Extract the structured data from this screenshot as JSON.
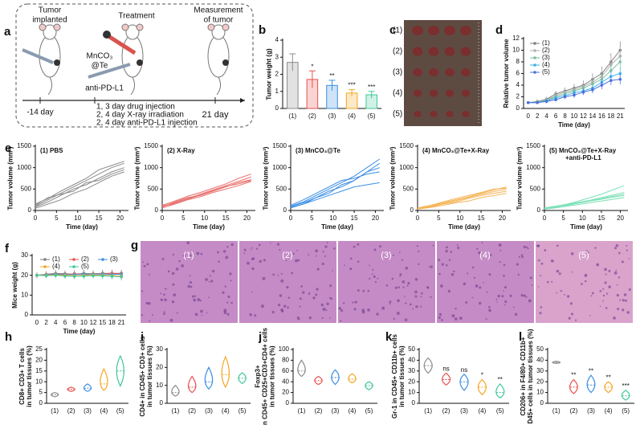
{
  "schematic": {
    "letter": "a",
    "tumor_implanted": [
      "Tumor",
      "implanted"
    ],
    "treatment": "Treatment",
    "measurement": [
      "Measurement",
      "of tumor"
    ],
    "drug": [
      "MnCO₃",
      "@Te"
    ],
    "antibody": "anti-PD-L1",
    "start_day": "-14 day",
    "schedule": [
      "1, 3 day drug injection",
      "2, 4 day X-ray irradiation",
      "2, 4 day anti-PD-L1 injection"
    ],
    "end_day": "21 day"
  },
  "photo": {
    "letter": "c",
    "labels": [
      "(1)",
      "(2)",
      "(3)",
      "(4)",
      "(5)"
    ]
  },
  "histology": {
    "letter": "g",
    "labels": [
      "(1)",
      "(2)",
      "(3)",
      "(4)",
      "(5)"
    ]
  },
  "chart_data": [
    {
      "type": "bar",
      "letter": "b",
      "ylabel": "Tumor weight (g)",
      "categories": [
        "(1)",
        "(2)",
        "(3)",
        "(4)",
        "(5)"
      ],
      "values": [
        2.7,
        1.7,
        1.35,
        0.9,
        0.8
      ],
      "errors": [
        0.5,
        0.5,
        0.3,
        0.2,
        0.2
      ],
      "colors": [
        "#8c8c8c",
        "#e8524f",
        "#3b8fe0",
        "#f5a623",
        "#3fc79a"
      ],
      "significance": [
        null,
        "*",
        "**",
        "***",
        "***"
      ],
      "ylim": [
        0,
        4
      ],
      "yticks": [
        0,
        1,
        2,
        3,
        4
      ]
    },
    {
      "type": "line",
      "letter": "d",
      "ylabel": "Relative tumor volume",
      "xlabel": "Time (day)",
      "categories": [
        0,
        2,
        4,
        6,
        8,
        10,
        12,
        14,
        16,
        18,
        21
      ],
      "ylim": [
        0,
        12
      ],
      "yticks": [
        0,
        2,
        4,
        6,
        8,
        10,
        12
      ],
      "legend": "upper left",
      "series": [
        {
          "name": "(1)",
          "color": "#7f7f7f",
          "values": [
            1,
            1.2,
            1.6,
            2.5,
            3,
            3.5,
            4,
            5,
            6,
            8,
            10
          ],
          "errors": [
            0.2,
            0.3,
            0.4,
            0.5,
            0.6,
            0.7,
            0.8,
            1,
            1.2,
            1.5,
            1.5
          ]
        },
        {
          "name": "(2)",
          "color": "#b0b0b0",
          "values": [
            1,
            1.1,
            1.5,
            2.2,
            2.8,
            3.2,
            3.8,
            4.5,
            5.5,
            7.5,
            9
          ],
          "errors": [
            0.2,
            0.3,
            0.4,
            0.5,
            0.6,
            0.7,
            0.8,
            1,
            1.2,
            1.4,
            1.5
          ]
        },
        {
          "name": "(3)",
          "color": "#7fbf9f",
          "values": [
            1,
            1.1,
            1.4,
            2,
            2.5,
            3,
            3.5,
            4.2,
            5,
            6.5,
            8
          ],
          "errors": [
            0.2,
            0.3,
            0.3,
            0.4,
            0.5,
            0.6,
            0.7,
            0.9,
            1,
            1.2,
            1.3
          ]
        },
        {
          "name": "(4)",
          "color": "#3fb2e6",
          "values": [
            1,
            1,
            1.3,
            1.8,
            2.2,
            2.7,
            3,
            3.5,
            4.5,
            5.5,
            6
          ],
          "errors": [
            0.2,
            0.2,
            0.3,
            0.4,
            0.5,
            0.5,
            0.6,
            0.7,
            0.8,
            1,
            1
          ]
        },
        {
          "name": "(5)",
          "color": "#4a6fe0",
          "values": [
            1,
            1,
            1.2,
            1.5,
            2,
            2.3,
            2.8,
            3.2,
            4,
            4.8,
            5
          ],
          "errors": [
            0.2,
            0.2,
            0.3,
            0.3,
            0.4,
            0.5,
            0.5,
            0.6,
            0.7,
            0.8,
            0.9
          ]
        }
      ]
    },
    {
      "type": "line",
      "letter": "e",
      "title": "(1) PBS",
      "ylabel": "Tumor volume (mm³)",
      "xlabel": "Time (day)",
      "x": [
        0,
        3,
        6,
        9,
        12,
        15,
        18,
        21
      ],
      "xlim": [
        0,
        22
      ],
      "xticks": [
        0,
        5,
        10,
        15,
        20
      ],
      "ylim": [
        0,
        1500
      ],
      "yticks": [
        0,
        500,
        1000,
        1500
      ],
      "color": "#8a8a8a",
      "series": [
        {
          "values": [
            100,
            250,
            400,
            550,
            700,
            850,
            1000,
            1100
          ]
        },
        {
          "values": [
            80,
            200,
            350,
            500,
            600,
            750,
            900,
            1000
          ]
        },
        {
          "values": [
            120,
            300,
            380,
            450,
            650,
            700,
            850,
            950
          ]
        },
        {
          "values": [
            50,
            150,
            250,
            400,
            500,
            650,
            800,
            900
          ]
        },
        {
          "values": [
            150,
            280,
            450,
            600,
            750,
            950,
            1050,
            1150
          ]
        }
      ]
    },
    {
      "type": "line",
      "title": "(2) X-Ray",
      "ylabel": "Tumor volume (mm³)",
      "xlabel": "Time (day)",
      "x": [
        0,
        3,
        6,
        9,
        12,
        15,
        18,
        21
      ],
      "xlim": [
        0,
        22
      ],
      "xticks": [
        0,
        5,
        10,
        15,
        20
      ],
      "ylim": [
        0,
        1500
      ],
      "yticks": [
        0,
        500,
        1000,
        1500
      ],
      "color": "#e8706e",
      "series": [
        {
          "values": [
            100,
            180,
            280,
            380,
            480,
            580,
            680,
            780
          ]
        },
        {
          "values": [
            80,
            200,
            300,
            350,
            450,
            550,
            650,
            720
          ]
        },
        {
          "values": [
            120,
            220,
            330,
            420,
            520,
            620,
            750,
            850
          ]
        },
        {
          "values": [
            60,
            150,
            250,
            320,
            420,
            500,
            580,
            680
          ]
        },
        {
          "values": [
            100,
            160,
            260,
            360,
            460,
            560,
            620,
            700
          ]
        }
      ]
    },
    {
      "type": "line",
      "title": "(3) MnCO₃@Te",
      "ylabel": "Tumor volume (mm³)",
      "xlabel": "Time (day)",
      "x": [
        0,
        3,
        6,
        9,
        12,
        15,
        18,
        21
      ],
      "xlim": [
        0,
        22
      ],
      "xticks": [
        0,
        5,
        10,
        15,
        20
      ],
      "ylim": [
        0,
        1500
      ],
      "yticks": [
        0,
        500,
        1000,
        1500
      ],
      "color": "#3a8ee6",
      "series": [
        {
          "values": [
            100,
            200,
            350,
            500,
            650,
            800,
            1000,
            1200
          ]
        },
        {
          "values": [
            80,
            150,
            300,
            450,
            550,
            700,
            900,
            1100
          ]
        },
        {
          "values": [
            120,
            250,
            400,
            550,
            700,
            750,
            850,
            900
          ]
        },
        {
          "values": [
            60,
            150,
            250,
            350,
            450,
            550,
            600,
            650
          ]
        },
        {
          "values": [
            100,
            180,
            300,
            400,
            600,
            700,
            900,
            1000
          ]
        }
      ]
    },
    {
      "type": "line",
      "title": "(4) MnCO₃@Te+X-Ray",
      "ylabel": "Tumor volume (mm³)",
      "xlabel": "Time (day)",
      "x": [
        0,
        3,
        6,
        9,
        12,
        15,
        18,
        21
      ],
      "xlim": [
        0,
        22
      ],
      "xticks": [
        0,
        5,
        10,
        15,
        20
      ],
      "ylim": [
        0,
        1500
      ],
      "yticks": [
        0,
        500,
        1000,
        1500
      ],
      "color": "#f5b55a",
      "series": [
        {
          "values": [
            50,
            100,
            180,
            250,
            320,
            400,
            480,
            550
          ]
        },
        {
          "values": [
            40,
            80,
            150,
            200,
            280,
            350,
            400,
            450
          ]
        },
        {
          "values": [
            60,
            120,
            200,
            280,
            350,
            420,
            500,
            520
          ]
        },
        {
          "values": [
            30,
            70,
            120,
            180,
            220,
            300,
            350,
            400
          ]
        },
        {
          "values": [
            50,
            90,
            160,
            230,
            300,
            380,
            440,
            500
          ]
        }
      ]
    },
    {
      "type": "line",
      "title": [
        "(5) MnCO₃@Te+X-Ray",
        "+anti-PD-L1"
      ],
      "ylabel": "Tumor volume (mm³)",
      "xlabel": "Time (day)",
      "x": [
        0,
        3,
        6,
        9,
        12,
        15,
        18,
        21
      ],
      "xlim": [
        0,
        22
      ],
      "xticks": [
        0,
        5,
        10,
        15,
        20
      ],
      "ylim": [
        0,
        1500
      ],
      "yticks": [
        0,
        500,
        1000,
        1500
      ],
      "color": "#7ee0b8",
      "series": [
        {
          "values": [
            50,
            100,
            150,
            220,
            300,
            380,
            480,
            580
          ]
        },
        {
          "values": [
            40,
            80,
            130,
            180,
            230,
            280,
            330,
            380
          ]
        },
        {
          "values": [
            60,
            100,
            140,
            190,
            240,
            300,
            360,
            420
          ]
        },
        {
          "values": [
            30,
            60,
            100,
            140,
            180,
            220,
            260,
            300
          ]
        },
        {
          "values": [
            40,
            90,
            120,
            170,
            220,
            260,
            310,
            350
          ]
        }
      ]
    },
    {
      "type": "line",
      "letter": "f",
      "ylabel": "Mice weight (g)",
      "xlabel": "Time (day)",
      "categories": [
        0,
        2,
        4,
        6,
        8,
        10,
        12,
        15,
        18,
        21
      ],
      "ylim": [
        0,
        30
      ],
      "yticks": [
        0,
        10,
        20,
        30
      ],
      "legend": "top",
      "series": [
        {
          "name": "(1)",
          "color": "#7f7f7f",
          "values": [
            20,
            20.5,
            21,
            20.8,
            20.5,
            21,
            20.8,
            21,
            21,
            21
          ],
          "errors": [
            1.5,
            1.5,
            1.8,
            1.6,
            1.5,
            1.8,
            1.6,
            1.8,
            1.7,
            1.8
          ]
        },
        {
          "name": "(2)",
          "color": "#e8524f",
          "values": [
            20,
            20.3,
            20.6,
            20.4,
            20.8,
            20.5,
            20.6,
            20.8,
            21,
            20.8
          ],
          "errors": [
            1.4,
            1.5,
            1.6,
            1.5,
            1.7,
            1.5,
            1.6,
            1.7,
            1.8,
            1.7
          ]
        },
        {
          "name": "(3)",
          "color": "#3b8fe0",
          "values": [
            20,
            20.2,
            20.5,
            20.3,
            20.4,
            20.6,
            20.5,
            20.6,
            20.4,
            20.5
          ],
          "errors": [
            1.3,
            1.4,
            1.5,
            1.4,
            1.5,
            1.6,
            1.5,
            1.6,
            1.5,
            1.6
          ]
        },
        {
          "name": "(4)",
          "color": "#f5a623",
          "values": [
            20,
            20,
            20.2,
            20,
            19.8,
            20,
            20.2,
            20,
            19.8,
            19.5
          ],
          "errors": [
            1.3,
            1.4,
            1.4,
            1.3,
            1.5,
            1.4,
            1.5,
            1.4,
            1.6,
            1.8
          ]
        },
        {
          "name": "(5)",
          "color": "#3fc79a",
          "values": [
            20,
            19.8,
            20,
            19.6,
            19.5,
            19.6,
            19.8,
            19.7,
            19.5,
            19.2
          ],
          "errors": [
            1.2,
            1.3,
            1.4,
            1.3,
            1.4,
            1.5,
            1.4,
            1.5,
            1.6,
            1.8
          ]
        }
      ]
    },
    {
      "type": "violin",
      "letter": "h",
      "ylabel": [
        "CD8+ CD3+ T cells",
        "in tumor tissues (%)"
      ],
      "categories": [
        "(1)",
        "(2)",
        "(3)",
        "(4)",
        "(5)"
      ],
      "colors": [
        "#8c8c8c",
        "#e8524f",
        "#3b8fe0",
        "#f5a623",
        "#3fc79a"
      ],
      "min": [
        3,
        5.5,
        5.5,
        6,
        8
      ],
      "median": [
        4,
        6.5,
        7,
        9,
        15
      ],
      "max": [
        5,
        7.5,
        9,
        16,
        22
      ],
      "ylim": [
        0,
        25
      ],
      "yticks": [
        0,
        5,
        10,
        15,
        20,
        25
      ]
    },
    {
      "type": "violin",
      "letter": "i",
      "ylabel": [
        "CD4+ in CD45+ CD3+ cells",
        "in tumor tissues (%)"
      ],
      "categories": [
        "(1)",
        "(2)",
        "(3)",
        "(4)",
        "(5)"
      ],
      "colors": [
        "#8c8c8c",
        "#e8524f",
        "#3b8fe0",
        "#f5a623",
        "#3fc79a"
      ],
      "min": [
        4,
        6,
        8,
        9,
        11
      ],
      "median": [
        6,
        9,
        12,
        16,
        14
      ],
      "max": [
        10,
        15,
        20,
        26,
        17
      ],
      "ylim": [
        0,
        30
      ],
      "yticks": [
        0,
        10,
        20,
        30
      ]
    },
    {
      "type": "violin",
      "letter": "j",
      "ylabel": [
        "Foxp3+",
        "n CD45+ CD25+CD3+CD4+ cells",
        "in tumor tissues (%)"
      ],
      "categories": [
        "(1)",
        "(2)",
        "(3)",
        "(4)",
        "(5)"
      ],
      "colors": [
        "#8c8c8c",
        "#e8524f",
        "#3b8fe0",
        "#f5a623",
        "#3fc79a"
      ],
      "min": [
        50,
        35,
        35,
        38,
        25
      ],
      "median": [
        60,
        42,
        48,
        45,
        33
      ],
      "max": [
        80,
        50,
        62,
        55,
        40
      ],
      "ylim": [
        0,
        100
      ],
      "yticks": [
        0,
        20,
        40,
        60,
        80,
        100
      ]
    },
    {
      "type": "violin",
      "letter": "k",
      "ylabel": [
        "Gr-1 in CD45+ CD11b+ cells",
        "in tumor tissues (%)"
      ],
      "categories": [
        "(1)",
        "(2)",
        "(3)",
        "(4)",
        "(5)"
      ],
      "colors": [
        "#8c8c8c",
        "#e8524f",
        "#3b8fe0",
        "#f5a623",
        "#3fc79a"
      ],
      "min": [
        28,
        17,
        12,
        8,
        5
      ],
      "median": [
        35,
        22,
        20,
        15,
        10
      ],
      "max": [
        42,
        28,
        27,
        22,
        18
      ],
      "significance": [
        null,
        "ns",
        "ns",
        "*",
        "**"
      ],
      "ylim": [
        0,
        50
      ],
      "yticks": [
        0,
        10,
        20,
        30,
        40,
        50
      ]
    },
    {
      "type": "violin",
      "letter": "l",
      "ylabel": [
        "CD206+ in F4/80+ CD11b+",
        "D45+ cells in tumor tissues (%)"
      ],
      "categories": [
        "(1)",
        "(2)",
        "(3)",
        "(4)",
        "(5)"
      ],
      "colors": [
        "#8c8c8c",
        "#e8524f",
        "#3b8fe0",
        "#f5a623",
        "#3fc79a"
      ],
      "min": [
        37,
        9,
        10,
        10,
        3
      ],
      "median": [
        38,
        15,
        17,
        15,
        7
      ],
      "max": [
        39,
        22,
        26,
        20,
        12
      ],
      "significance": [
        null,
        "**",
        "**",
        "**",
        "***"
      ],
      "ylim": [
        0,
        50
      ],
      "yticks": [
        0,
        10,
        20,
        30,
        40,
        50
      ]
    }
  ]
}
